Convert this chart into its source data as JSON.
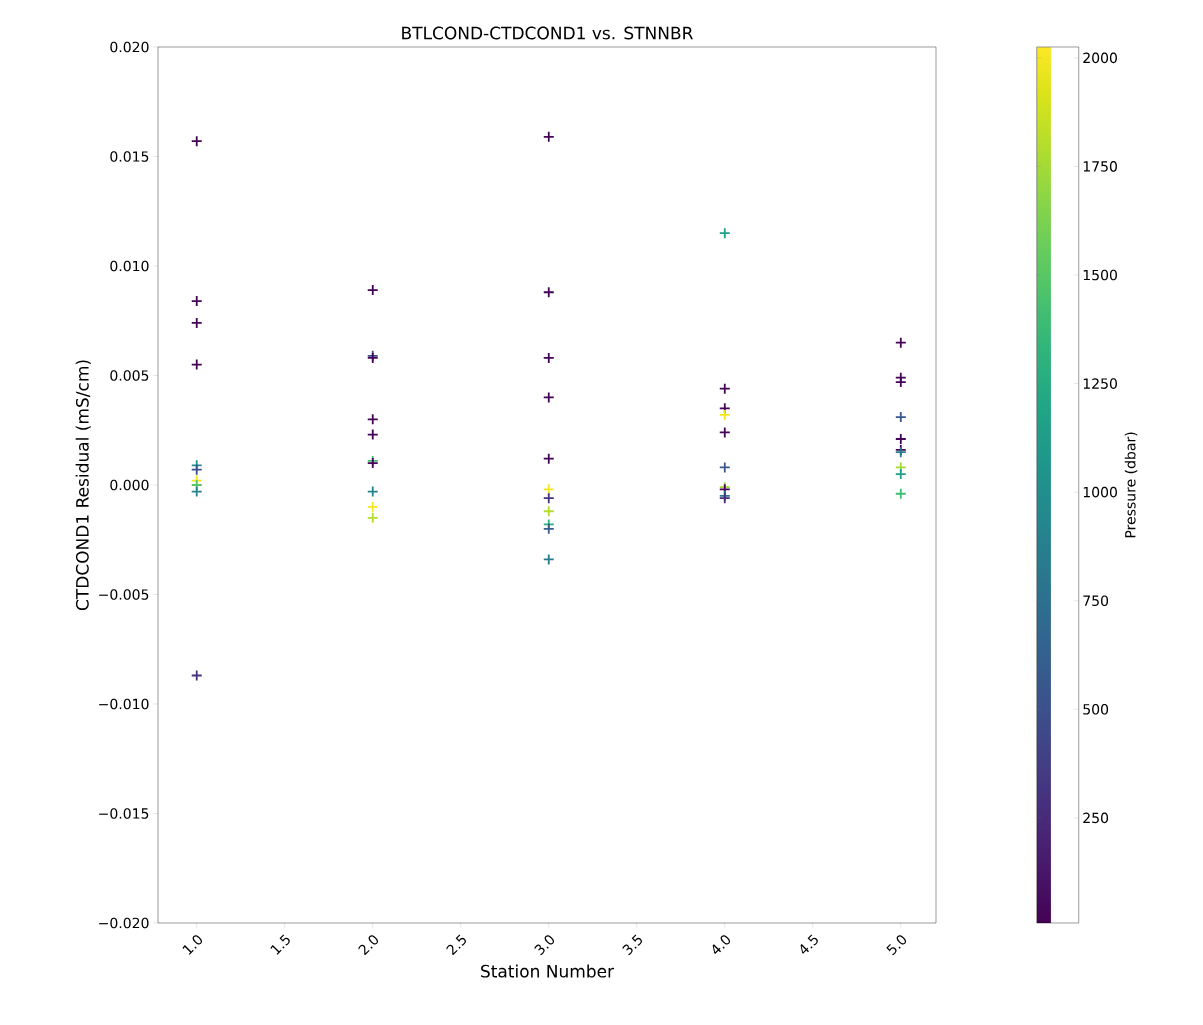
{
  "chart_data": {
    "type": "scatter",
    "title": "BTLCOND-CTDCOND1 vs. STNNBR",
    "xlabel": "Station Number",
    "ylabel": "CTDCOND1 Residual (mS/cm)",
    "clabel": "Pressure (dbar)",
    "x": [
      1,
      1,
      1,
      1,
      1,
      1,
      1,
      1,
      1,
      1,
      2,
      2,
      2,
      2,
      2,
      2,
      2,
      2,
      2,
      2,
      3,
      3,
      3,
      3,
      3,
      3,
      3,
      3,
      3,
      3,
      3,
      4,
      4,
      4,
      4,
      4,
      4,
      4,
      4,
      4,
      4,
      5,
      5,
      5,
      5,
      5,
      5,
      5,
      5,
      5,
      5
    ],
    "values": [
      0.0157,
      0.0084,
      0.0074,
      0.0055,
      0.0009,
      0.0007,
      0.0002,
      0.0,
      -0.0003,
      -0.0087,
      0.0089,
      0.0059,
      0.0058,
      0.003,
      0.0023,
      0.0011,
      0.001,
      -0.0003,
      -0.001,
      -0.0015,
      0.0159,
      0.0088,
      0.0058,
      0.004,
      0.0012,
      -0.0002,
      -0.0006,
      -0.0012,
      -0.0018,
      -0.002,
      -0.0034,
      0.0115,
      0.0044,
      0.0035,
      0.0032,
      0.0024,
      0.0008,
      -0.0001,
      -0.0002,
      -0.0005,
      -0.0006,
      0.0065,
      0.0049,
      0.0047,
      0.0031,
      0.0021,
      0.0016,
      0.0015,
      0.0008,
      0.0005,
      -0.0004
    ],
    "cvalues": [
      20,
      20,
      20,
      20,
      1000,
      500,
      2000,
      1500,
      900,
      300,
      20,
      500,
      20,
      20,
      20,
      1400,
      20,
      900,
      2000,
      1800,
      20,
      20,
      20,
      20,
      20,
      2000,
      300,
      1800,
      1300,
      600,
      850,
      1150,
      20,
      20,
      2000,
      20,
      550,
      1750,
      20,
      800,
      250,
      20,
      20,
      20,
      550,
      20,
      20,
      850,
      1750,
      1150,
      1400
    ],
    "marker": "cross",
    "xlim": [
      0.78,
      5.2
    ],
    "xticks": [
      {
        "value": 1,
        "label": "1.0"
      },
      {
        "value": 1.5,
        "label": "1.5"
      },
      {
        "value": 2,
        "label": "2.0"
      },
      {
        "value": 2.5,
        "label": "2.5"
      },
      {
        "value": 3,
        "label": "3.0"
      },
      {
        "value": 3.5,
        "label": "3.5"
      },
      {
        "value": 4,
        "label": "4.0"
      },
      {
        "value": 4.5,
        "label": "4.5"
      },
      {
        "value": 5,
        "label": "5.0"
      }
    ],
    "ylim": [
      -0.02,
      0.02
    ],
    "yticks": [
      {
        "value": -0.02,
        "label": "−0.020"
      },
      {
        "value": -0.015,
        "label": "−0.015"
      },
      {
        "value": -0.01,
        "label": "−0.010"
      },
      {
        "value": -0.005,
        "label": "−0.005"
      },
      {
        "value": 0,
        "label": "0.000"
      },
      {
        "value": 0.005,
        "label": "0.005"
      },
      {
        "value": 0.01,
        "label": "0.010"
      },
      {
        "value": 0.015,
        "label": "0.015"
      },
      {
        "value": 0.02,
        "label": "0.020"
      }
    ],
    "clim": [
      8,
      2025
    ],
    "cticks": [
      250,
      500,
      750,
      1000,
      1250,
      1500,
      1750,
      2000
    ]
  }
}
